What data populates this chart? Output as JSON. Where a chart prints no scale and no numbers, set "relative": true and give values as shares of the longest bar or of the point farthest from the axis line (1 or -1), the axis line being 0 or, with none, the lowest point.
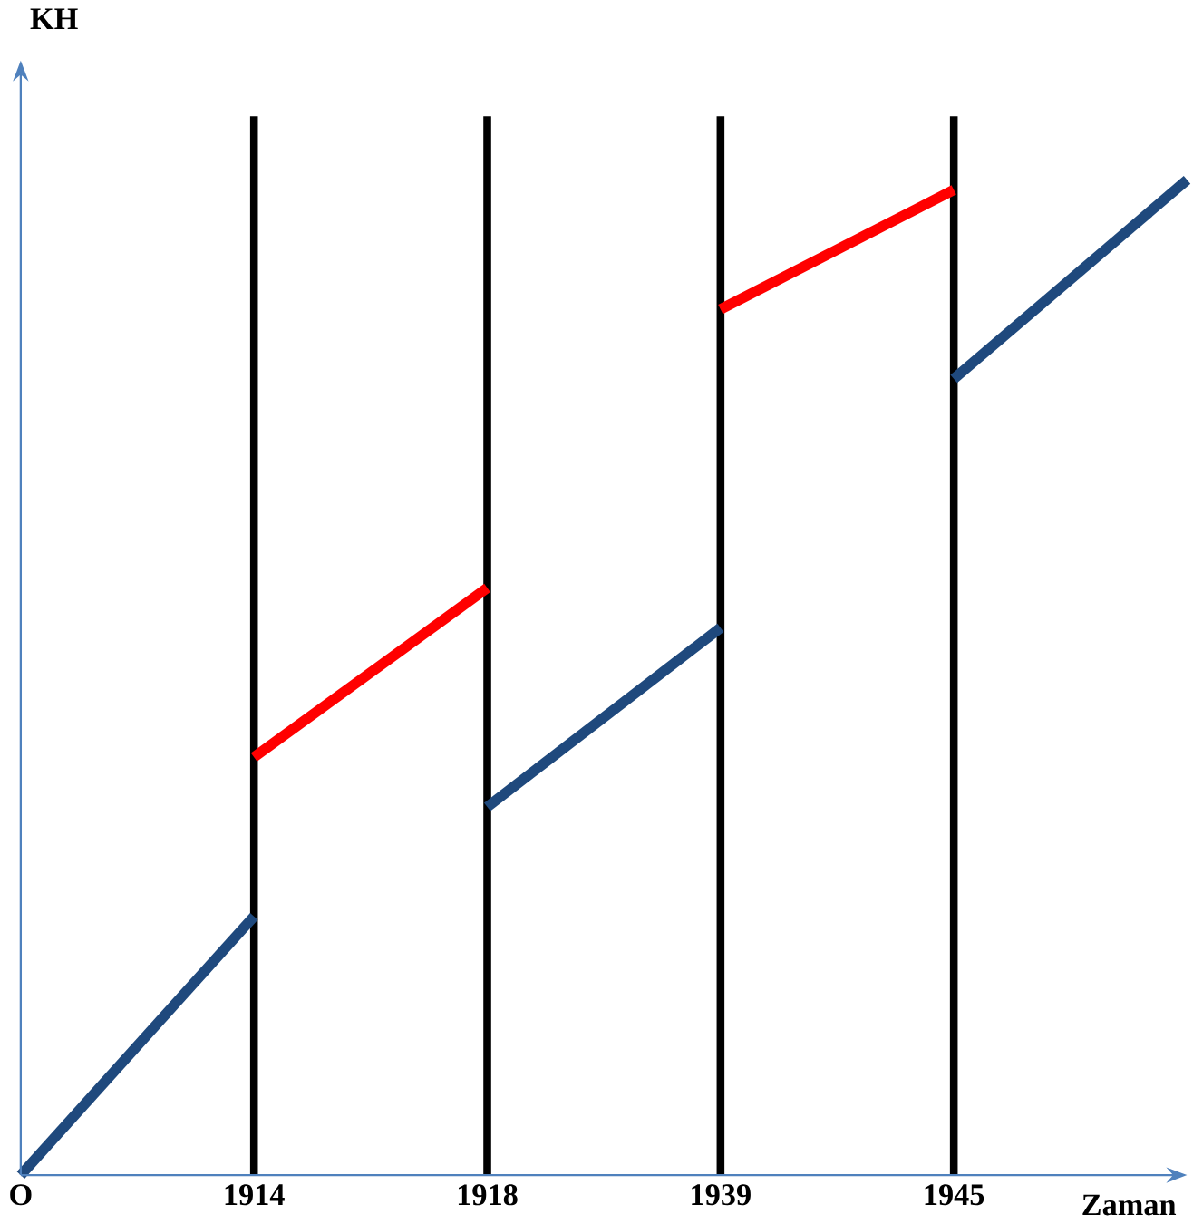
{
  "chart_data": {
    "type": "line",
    "relative": true,
    "ylabel": "KH",
    "xlabel": "Zaman",
    "categories": [
      "O",
      "1914",
      "1918",
      "1939",
      "1945",
      null
    ],
    "series": [
      {
        "color": "#1f497d",
        "values": [
          0,
          0.26,
          null,
          null,
          null,
          null
        ]
      },
      {
        "color": "#ff0000",
        "values": [
          null,
          0.42,
          0.59,
          null,
          null,
          null
        ]
      },
      {
        "color": "#1f497d",
        "values": [
          null,
          null,
          0.37,
          0.55,
          null,
          null
        ]
      },
      {
        "color": "#ff0000",
        "values": [
          null,
          null,
          null,
          0.87,
          0.99,
          null
        ]
      },
      {
        "color": "#1f497d",
        "values": [
          null,
          null,
          null,
          null,
          0.8,
          1
        ]
      }
    ],
    "ref_lines": [
      {
        "axis": "x",
        "value": "1914",
        "color": "#000000"
      },
      {
        "axis": "x",
        "value": "1918",
        "color": "#000000"
      },
      {
        "axis": "x",
        "value": "1939",
        "color": "#000000"
      },
      {
        "axis": "x",
        "value": "1945",
        "color": "#000000"
      }
    ],
    "grid": false,
    "marker": "none",
    "line_style": "solid"
  }
}
